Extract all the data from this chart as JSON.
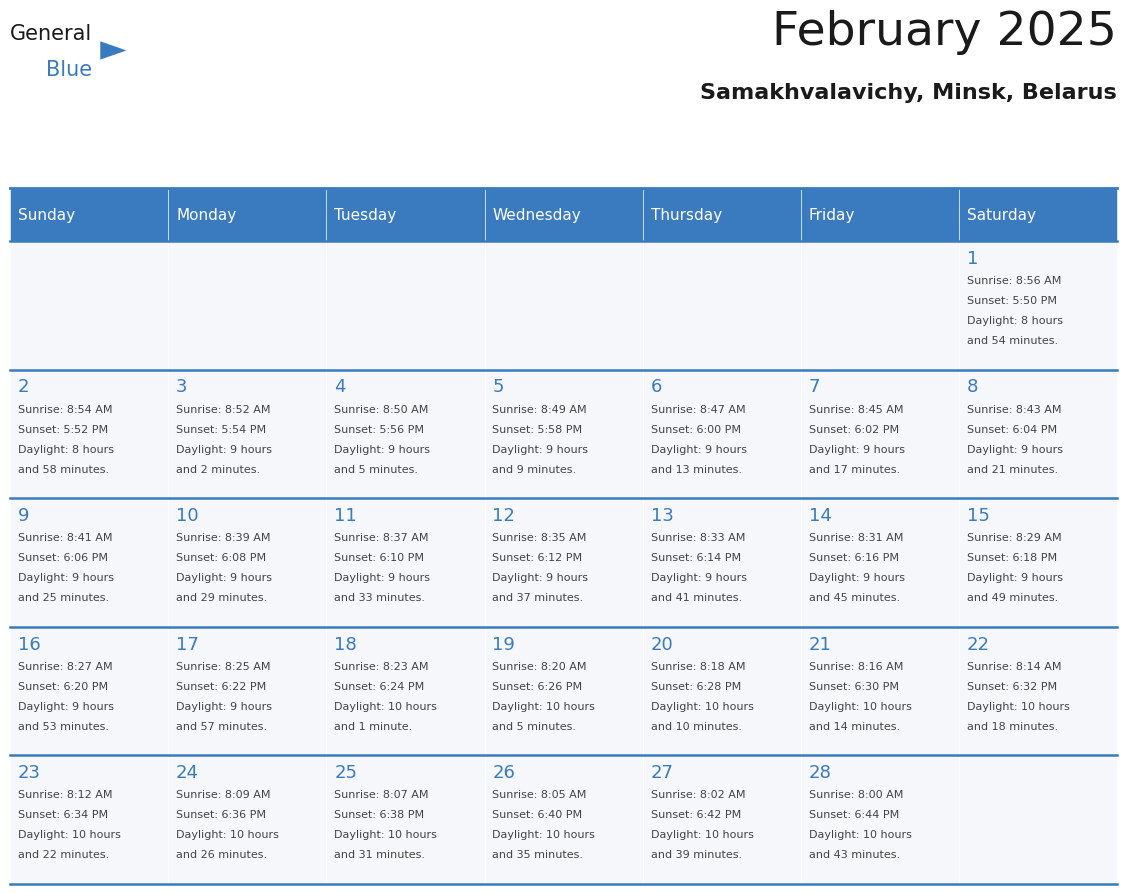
{
  "title": "February 2025",
  "subtitle": "Samakhvalavichy, Minsk, Belarus",
  "days_of_week": [
    "Sunday",
    "Monday",
    "Tuesday",
    "Wednesday",
    "Thursday",
    "Friday",
    "Saturday"
  ],
  "header_bg": "#3a7abf",
  "header_text": "#ffffff",
  "cell_bg": "#f5f7fa",
  "separator_color": "#3a7abf",
  "day_num_color": "#3a7abf",
  "text_color": "#444444",
  "calendar_data": [
    [
      null,
      null,
      null,
      null,
      null,
      null,
      {
        "day": 1,
        "sunrise": "8:56 AM",
        "sunset": "5:50 PM",
        "daylight": "8 hours",
        "daylight2": "and 54 minutes."
      }
    ],
    [
      {
        "day": 2,
        "sunrise": "8:54 AM",
        "sunset": "5:52 PM",
        "daylight": "8 hours",
        "daylight2": "and 58 minutes."
      },
      {
        "day": 3,
        "sunrise": "8:52 AM",
        "sunset": "5:54 PM",
        "daylight": "9 hours",
        "daylight2": "and 2 minutes."
      },
      {
        "day": 4,
        "sunrise": "8:50 AM",
        "sunset": "5:56 PM",
        "daylight": "9 hours",
        "daylight2": "and 5 minutes."
      },
      {
        "day": 5,
        "sunrise": "8:49 AM",
        "sunset": "5:58 PM",
        "daylight": "9 hours",
        "daylight2": "and 9 minutes."
      },
      {
        "day": 6,
        "sunrise": "8:47 AM",
        "sunset": "6:00 PM",
        "daylight": "9 hours",
        "daylight2": "and 13 minutes."
      },
      {
        "day": 7,
        "sunrise": "8:45 AM",
        "sunset": "6:02 PM",
        "daylight": "9 hours",
        "daylight2": "and 17 minutes."
      },
      {
        "day": 8,
        "sunrise": "8:43 AM",
        "sunset": "6:04 PM",
        "daylight": "9 hours",
        "daylight2": "and 21 minutes."
      }
    ],
    [
      {
        "day": 9,
        "sunrise": "8:41 AM",
        "sunset": "6:06 PM",
        "daylight": "9 hours",
        "daylight2": "and 25 minutes."
      },
      {
        "day": 10,
        "sunrise": "8:39 AM",
        "sunset": "6:08 PM",
        "daylight": "9 hours",
        "daylight2": "and 29 minutes."
      },
      {
        "day": 11,
        "sunrise": "8:37 AM",
        "sunset": "6:10 PM",
        "daylight": "9 hours",
        "daylight2": "and 33 minutes."
      },
      {
        "day": 12,
        "sunrise": "8:35 AM",
        "sunset": "6:12 PM",
        "daylight": "9 hours",
        "daylight2": "and 37 minutes."
      },
      {
        "day": 13,
        "sunrise": "8:33 AM",
        "sunset": "6:14 PM",
        "daylight": "9 hours",
        "daylight2": "and 41 minutes."
      },
      {
        "day": 14,
        "sunrise": "8:31 AM",
        "sunset": "6:16 PM",
        "daylight": "9 hours",
        "daylight2": "and 45 minutes."
      },
      {
        "day": 15,
        "sunrise": "8:29 AM",
        "sunset": "6:18 PM",
        "daylight": "9 hours",
        "daylight2": "and 49 minutes."
      }
    ],
    [
      {
        "day": 16,
        "sunrise": "8:27 AM",
        "sunset": "6:20 PM",
        "daylight": "9 hours",
        "daylight2": "and 53 minutes."
      },
      {
        "day": 17,
        "sunrise": "8:25 AM",
        "sunset": "6:22 PM",
        "daylight": "9 hours",
        "daylight2": "and 57 minutes."
      },
      {
        "day": 18,
        "sunrise": "8:23 AM",
        "sunset": "6:24 PM",
        "daylight": "10 hours",
        "daylight2": "and 1 minute."
      },
      {
        "day": 19,
        "sunrise": "8:20 AM",
        "sunset": "6:26 PM",
        "daylight": "10 hours",
        "daylight2": "and 5 minutes."
      },
      {
        "day": 20,
        "sunrise": "8:18 AM",
        "sunset": "6:28 PM",
        "daylight": "10 hours",
        "daylight2": "and 10 minutes."
      },
      {
        "day": 21,
        "sunrise": "8:16 AM",
        "sunset": "6:30 PM",
        "daylight": "10 hours",
        "daylight2": "and 14 minutes."
      },
      {
        "day": 22,
        "sunrise": "8:14 AM",
        "sunset": "6:32 PM",
        "daylight": "10 hours",
        "daylight2": "and 18 minutes."
      }
    ],
    [
      {
        "day": 23,
        "sunrise": "8:12 AM",
        "sunset": "6:34 PM",
        "daylight": "10 hours",
        "daylight2": "and 22 minutes."
      },
      {
        "day": 24,
        "sunrise": "8:09 AM",
        "sunset": "6:36 PM",
        "daylight": "10 hours",
        "daylight2": "and 26 minutes."
      },
      {
        "day": 25,
        "sunrise": "8:07 AM",
        "sunset": "6:38 PM",
        "daylight": "10 hours",
        "daylight2": "and 31 minutes."
      },
      {
        "day": 26,
        "sunrise": "8:05 AM",
        "sunset": "6:40 PM",
        "daylight": "10 hours",
        "daylight2": "and 35 minutes."
      },
      {
        "day": 27,
        "sunrise": "8:02 AM",
        "sunset": "6:42 PM",
        "daylight": "10 hours",
        "daylight2": "and 39 minutes."
      },
      {
        "day": 28,
        "sunrise": "8:00 AM",
        "sunset": "6:44 PM",
        "daylight": "10 hours",
        "daylight2": "and 43 minutes."
      },
      null
    ]
  ]
}
